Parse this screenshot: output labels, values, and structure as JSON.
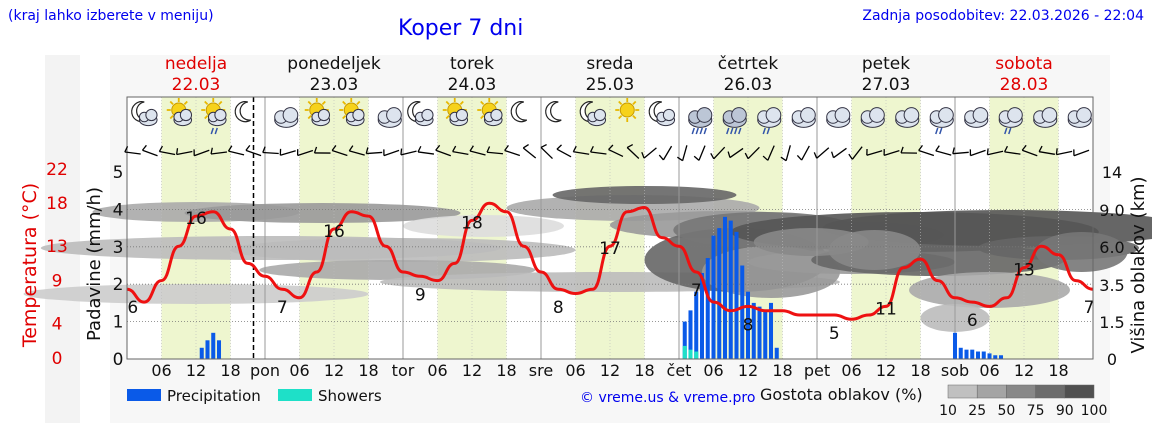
{
  "header": {
    "location_hint": "(kraj lahko izberete v meniju)",
    "title": "Koper 7 dni",
    "updated": "Zadnja posodobitev: 22.03.2026 - 22:04"
  },
  "days": [
    {
      "name": "nedelja",
      "date": "22.03",
      "weekend": true,
      "abbr": ""
    },
    {
      "name": "ponedeljek",
      "date": "23.03",
      "weekend": false,
      "abbr": "pon"
    },
    {
      "name": "torek",
      "date": "24.03",
      "weekend": false,
      "abbr": "tor"
    },
    {
      "name": "sreda",
      "date": "25.03",
      "weekend": false,
      "abbr": "sre"
    },
    {
      "name": "četrtek",
      "date": "26.03",
      "weekend": false,
      "abbr": "čet"
    },
    {
      "name": "petek",
      "date": "27.03",
      "weekend": false,
      "abbr": "pet"
    },
    {
      "name": "sobota",
      "date": "28.03",
      "weekend": true,
      "abbr": "sob"
    }
  ],
  "icons": [
    [
      "moon-cloud-icon",
      "sun-cloud-icon",
      "sun-cloud-rain-icon",
      "moon-icon"
    ],
    [
      "cloud-icon",
      "sun-cloud-icon",
      "sun-cloud-icon",
      "cloud-icon"
    ],
    [
      "moon-cloud-icon",
      "sun-cloud-icon",
      "sun-cloud-icon",
      "moon-icon"
    ],
    [
      "moon-icon",
      "moon-cloud-icon",
      "sun-icon",
      "moon-cloud-icon"
    ],
    [
      "cloud-heavy-rain-icon",
      "cloud-heavy-rain-icon",
      "cloud-rain-icon",
      "cloud-icon"
    ],
    [
      "cloud-icon",
      "cloud-icon",
      "cloud-icon",
      "cloud-rain-icon"
    ],
    [
      "cloud-icon",
      "cloud-rain-icon",
      "cloud-icon",
      "cloud-icon"
    ]
  ],
  "chart_data": {
    "type": "line",
    "title": "Koper 7 dni",
    "x_unit": "hours from 22.03 00:00",
    "x_range": [
      0,
      168
    ],
    "hour_ticks": [
      "06",
      "12",
      "18"
    ],
    "left_temp_axis": {
      "label": "Temperatura (°C)",
      "ticks": [
        0,
        4,
        9,
        13,
        18,
        22
      ]
    },
    "left_precip_axis": {
      "label": "Padavine (mm/h)",
      "ticks": [
        0,
        1,
        2,
        3,
        4,
        5
      ],
      "ylim": [
        0,
        5
      ]
    },
    "right_cloud_axis": {
      "label": "Višina oblakov (km)",
      "ticks": [
        "0",
        "1.5",
        "3.5",
        "6.0",
        "9.0",
        "14"
      ]
    },
    "temperature": {
      "name": "Temperatura",
      "x": [
        0,
        3,
        6,
        9,
        12,
        15,
        18,
        21,
        24,
        27,
        30,
        33,
        36,
        39,
        42,
        45,
        48,
        51,
        54,
        57,
        60,
        63,
        66,
        69,
        72,
        75,
        78,
        81,
        84,
        87,
        90,
        93,
        96,
        99,
        102,
        105,
        108,
        111,
        114,
        117,
        120,
        123,
        126,
        129,
        132,
        135,
        138,
        141,
        144,
        147,
        150,
        153,
        156,
        159,
        162,
        165,
        168
      ],
      "y": [
        8,
        6.5,
        9,
        13,
        16.5,
        17,
        15,
        11,
        9.5,
        8,
        7,
        10,
        15,
        17,
        16.5,
        13,
        10,
        9.5,
        9,
        11,
        16,
        18,
        17,
        13,
        10,
        8,
        7.5,
        8,
        13,
        17,
        17.5,
        14,
        13,
        10,
        6.5,
        5.5,
        6,
        5.5,
        5.5,
        5,
        5,
        5,
        4.5,
        5,
        6,
        10.5,
        11.5,
        9,
        7,
        6.5,
        6,
        7,
        10.5,
        13,
        12,
        9,
        8
      ]
    },
    "temperature_labels": [
      {
        "x": 1,
        "value": "6"
      },
      {
        "x": 12,
        "value": "16"
      },
      {
        "x": 27,
        "value": "7"
      },
      {
        "x": 36,
        "value": "16"
      },
      {
        "x": 51,
        "value": "9"
      },
      {
        "x": 60,
        "value": "18"
      },
      {
        "x": 75,
        "value": "8"
      },
      {
        "x": 84,
        "value": "17"
      },
      {
        "x": 99,
        "value": "7"
      },
      {
        "x": 108,
        "value": "8"
      },
      {
        "x": 123,
        "value": "5"
      },
      {
        "x": 132,
        "value": "11"
      },
      {
        "x": 147,
        "value": "6"
      },
      {
        "x": 156,
        "value": "13"
      },
      {
        "x": 168,
        "value": "7"
      }
    ],
    "precipitation": {
      "name": "Precipitation",
      "x": [
        13,
        14,
        15,
        16,
        97,
        98,
        99,
        100,
        101,
        102,
        103,
        104,
        105,
        106,
        107,
        108,
        109,
        110,
        111,
        112,
        113,
        144,
        145,
        146,
        147,
        148,
        149,
        150,
        151,
        152
      ],
      "y": [
        0.3,
        0.5,
        0.7,
        0.5,
        1,
        1.3,
        1.8,
        2.3,
        2.7,
        3.3,
        3.5,
        3.8,
        3.7,
        3.4,
        2.5,
        1.8,
        1.5,
        1.4,
        1.3,
        1.5,
        0.3,
        0.7,
        0.3,
        0.25,
        0.25,
        0.2,
        0.2,
        0.15,
        0.1,
        0.1
      ]
    },
    "showers": {
      "name": "Showers",
      "x": [
        97,
        98,
        99
      ],
      "y": [
        0.35,
        0.25,
        0.2
      ]
    },
    "cloud_legend": {
      "title": "Gostota oblakov (%)",
      "levels": [
        "10",
        "25",
        "50",
        "75",
        "90",
        "100"
      ]
    },
    "legend": {
      "precipitation": "Precipitation",
      "showers": "Showers"
    },
    "credit": "© vreme.us & vreme.pro"
  }
}
